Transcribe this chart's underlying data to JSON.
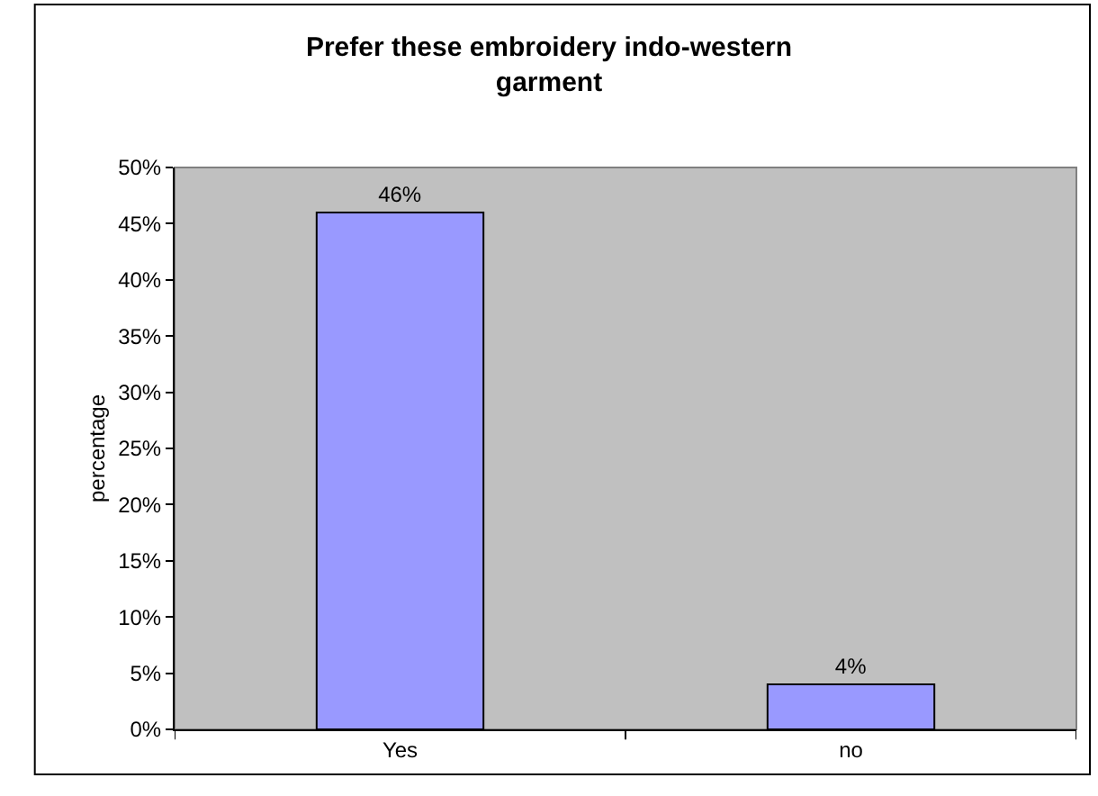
{
  "chart_data": {
    "type": "bar",
    "title": "Prefer these embroidery indo-western garment",
    "ylabel": "percentage",
    "categories": [
      "Yes",
      "no"
    ],
    "values": [
      46,
      4
    ],
    "color": "#9999ff",
    "value_labels": [
      "46%",
      "4%"
    ],
    "ylim": [
      0,
      50
    ],
    "yticks": [
      {
        "value": 0,
        "label": "0%"
      },
      {
        "value": 5,
        "label": "5%"
      },
      {
        "value": 10,
        "label": "10%"
      },
      {
        "value": 15,
        "label": "15%"
      },
      {
        "value": 20,
        "label": "20%"
      },
      {
        "value": 25,
        "label": "25%"
      },
      {
        "value": 30,
        "label": "30%"
      },
      {
        "value": 35,
        "label": "35%"
      },
      {
        "value": 40,
        "label": "40%"
      },
      {
        "value": 45,
        "label": "45%"
      },
      {
        "value": 50,
        "label": "50%"
      }
    ],
    "grid": false,
    "legend": false
  }
}
